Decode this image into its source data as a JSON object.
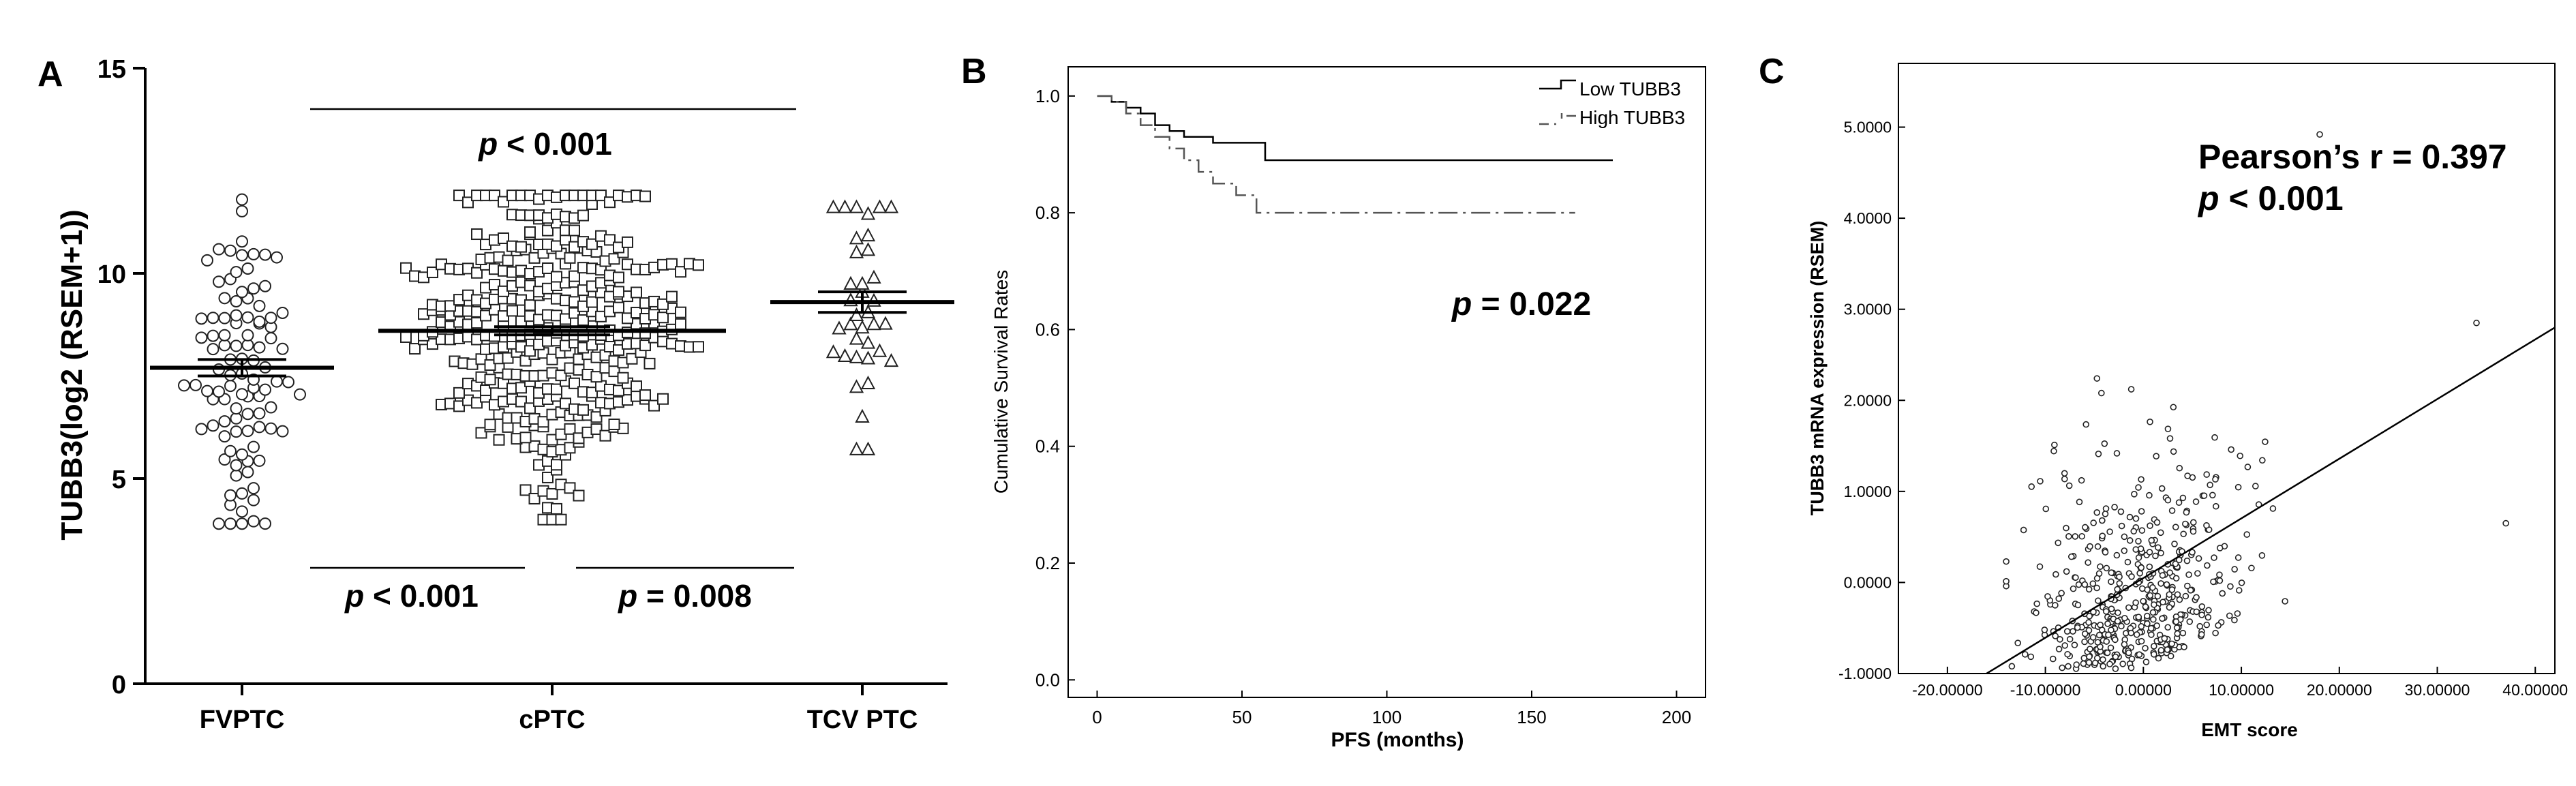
{
  "panels": [
    {
      "panel_label": "A",
      "chart_data": {
        "type": "scatter",
        "subtype": "dot-plot with mean ± SEM",
        "ylabel": "TUBB3(log2 (RSEM+1))",
        "ylim": [
          0,
          15
        ],
        "yticks": [
          "0",
          "5",
          "10",
          "15"
        ],
        "categories": [
          "FVPTC",
          "cPTC",
          "TCV PTC"
        ],
        "groups": [
          {
            "name": "FVPTC",
            "marker": "circle",
            "n": 100,
            "min": 3.9,
            "max": 11.8,
            "mean": 7.7,
            "sem": 0.2
          },
          {
            "name": "cPTC",
            "marker": "square",
            "n": 390,
            "min": 4.0,
            "max": 11.9,
            "mean": 8.6,
            "sem": 0.1
          },
          {
            "name": "TCV PTC",
            "marker": "triangle",
            "n": 36,
            "min": 5.7,
            "max": 11.6,
            "mean": 9.3,
            "sem": 0.25
          }
        ],
        "comparisons": [
          {
            "groups": [
              "FVPTC",
              "TCV PTC"
            ],
            "p_prefix": "p",
            "p_text": " < 0.001"
          },
          {
            "groups": [
              "FVPTC",
              "cPTC"
            ],
            "p_prefix": "p",
            "p_text": " < 0.001"
          },
          {
            "groups": [
              "cPTC",
              "TCV PTC"
            ],
            "p_prefix": "p",
            "p_text": " = 0.008"
          }
        ]
      }
    },
    {
      "panel_label": "B",
      "chart_data": {
        "type": "line",
        "subtype": "Kaplan-Meier step curve",
        "xlabel": "PFS (months)",
        "ylabel": "Cumulative Survival Rates",
        "xlim": [
          -10,
          210
        ],
        "ylim": [
          -0.03,
          1.05
        ],
        "xticks": [
          "0",
          "50",
          "100",
          "150",
          "200"
        ],
        "yticks": [
          "0.0",
          "0.2",
          "0.4",
          "0.6",
          "0.8",
          "1.0"
        ],
        "series": [
          {
            "name": "Low TUBB3",
            "style": "solid",
            "x": [
              0,
              5,
              10,
              15,
              20,
              25,
              30,
              40,
              58,
              178
            ],
            "y": [
              1.0,
              0.99,
              0.98,
              0.97,
              0.95,
              0.94,
              0.93,
              0.92,
              0.89,
              0.89
            ]
          },
          {
            "name": "High TUBB3",
            "style": "dash-dot",
            "x": [
              0,
              5,
              10,
              15,
              20,
              25,
              30,
              35,
              40,
              48,
              55,
              165
            ],
            "y": [
              1.0,
              0.99,
              0.97,
              0.95,
              0.93,
              0.91,
              0.89,
              0.87,
              0.85,
              0.83,
              0.8,
              0.8
            ]
          }
        ],
        "legend": [
          "Low TUBB3",
          "High TUBB3"
        ],
        "legend_position": "top-right",
        "annotation": {
          "p_prefix": "p",
          "p_text": " = 0.022"
        }
      }
    },
    {
      "panel_label": "C",
      "chart_data": {
        "type": "scatter",
        "subtype": "scatter with linear regression line",
        "xlabel": "EMT score",
        "ylabel": "TUBB3 mRNA expression (RSEM)",
        "xlim": [
          -25,
          42
        ],
        "ylim": [
          -1,
          5.7
        ],
        "xticks": [
          "-20.00000",
          "-10.00000",
          "0.00000",
          "10.00000",
          "20.00000",
          "30.00000",
          "40.00000"
        ],
        "yticks": [
          "-1.0000",
          "0.0000",
          "1.0000",
          "2.0000",
          "3.0000",
          "4.0000",
          "5.0000"
        ],
        "n_points": 500,
        "regression": {
          "x": [
            -16,
            42
          ],
          "y": [
            -1.0,
            2.8
          ]
        },
        "annotation_line1": "Pearson’s r = 0.397",
        "p_prefix": "p",
        "p_text": " < 0.001"
      }
    }
  ]
}
